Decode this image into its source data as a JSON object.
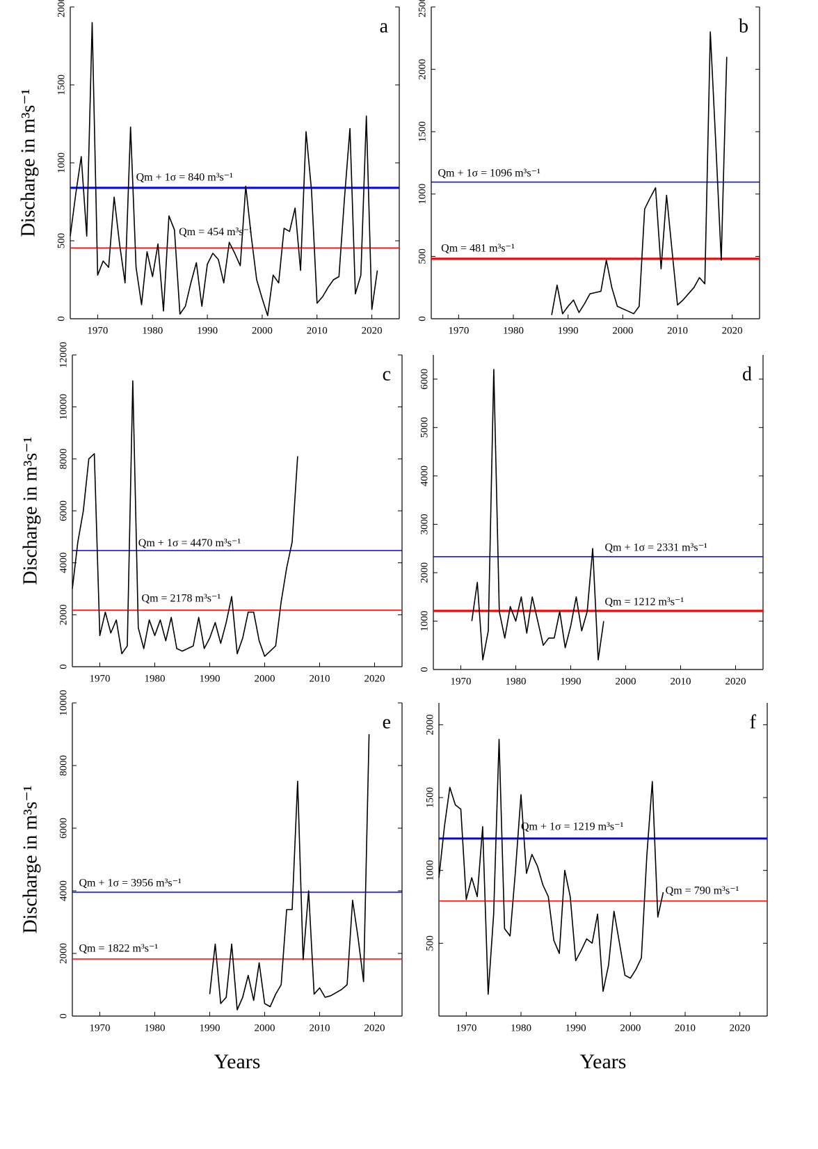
{
  "chart_data": [
    {
      "type": "line",
      "panel_label": "a",
      "ylabel": "Discharge in m³s⁻¹",
      "xlim": [
        1965,
        2025
      ],
      "xticks": [
        1970,
        1980,
        1990,
        2000,
        2010,
        2020
      ],
      "ylim": [
        0,
        2000
      ],
      "yticks": [
        0,
        500,
        1000,
        1500,
        2000
      ],
      "x": [
        1965,
        1966,
        1967,
        1968,
        1969,
        1970,
        1971,
        1972,
        1973,
        1974,
        1975,
        1976,
        1977,
        1978,
        1979,
        1980,
        1981,
        1982,
        1983,
        1984,
        1985,
        1986,
        1987,
        1988,
        1989,
        1990,
        1991,
        1992,
        1993,
        1994,
        1995,
        1996,
        1997,
        1998,
        1999,
        2000,
        2001,
        2002,
        2003,
        2004,
        2005,
        2006,
        2007,
        2008,
        2009,
        2010,
        2011,
        2012,
        2013,
        2014,
        2015,
        2016,
        2017,
        2018,
        2019,
        2020,
        2021
      ],
      "series": [
        {
          "color": "#000000",
          "values": [
            530,
            800,
            1040,
            530,
            1900,
            280,
            370,
            330,
            780,
            480,
            230,
            1230,
            330,
            90,
            430,
            270,
            480,
            50,
            660,
            570,
            30,
            80,
            230,
            360,
            80,
            350,
            420,
            380,
            230,
            490,
            420,
            340,
            850,
            530,
            250,
            130,
            20,
            280,
            230,
            580,
            560,
            710,
            310,
            1200,
            820,
            100,
            140,
            200,
            250,
            270,
            770,
            1220,
            160,
            280,
            1300,
            60,
            310
          ]
        }
      ],
      "reference_lines": [
        {
          "value": 840,
          "label": "Qm + 1σ = 840 m³s⁻¹",
          "color": "#0000ff",
          "linewidth": 3
        },
        {
          "value": 454,
          "label": "Qm = 454 m³s⁻¹",
          "color": "#ff0000",
          "linewidth": 1.5
        }
      ]
    },
    {
      "type": "line",
      "panel_label": "b",
      "xlim": [
        1965,
        2025
      ],
      "xticks": [
        1970,
        1980,
        1990,
        2000,
        2010,
        2020
      ],
      "ylim": [
        0,
        2500
      ],
      "yticks": [
        0,
        500,
        1000,
        1500,
        2000,
        2500
      ],
      "x": [
        1987,
        1988,
        1989,
        1990,
        1991,
        1992,
        1993,
        1994,
        1995,
        1996,
        1997,
        1998,
        1999,
        2000,
        2001,
        2002,
        2003,
        2004,
        2005,
        2006,
        2007,
        2008,
        2009,
        2010,
        2011,
        2012,
        2013,
        2014,
        2015,
        2016,
        2017,
        2018,
        2019
      ],
      "series": [
        {
          "color": "#000000",
          "values": [
            30,
            270,
            40,
            100,
            150,
            50,
            120,
            200,
            210,
            220,
            470,
            250,
            100,
            80,
            60,
            40,
            100,
            880,
            970,
            1050,
            400,
            990,
            550,
            110,
            150,
            200,
            250,
            330,
            280,
            2300,
            1400,
            470,
            2100
          ]
        }
      ],
      "reference_lines": [
        {
          "value": 1096,
          "label": "Qm + 1σ = 1096 m³s⁻¹",
          "color": "#0000ff",
          "linewidth": 1.5
        },
        {
          "value": 481,
          "label": "Qm = 481 m³s⁻¹",
          "color": "#ff0000",
          "linewidth": 3
        }
      ]
    },
    {
      "type": "line",
      "panel_label": "c",
      "ylabel": "Discharge in m³s⁻¹",
      "xlim": [
        1965,
        2025
      ],
      "xticks": [
        1970,
        1980,
        1990,
        2000,
        2010,
        2020
      ],
      "ylim": [
        0,
        12000
      ],
      "yticks": [
        0,
        2000,
        4000,
        6000,
        8000,
        10000,
        12000
      ],
      "x": [
        1965,
        1966,
        1967,
        1968,
        1969,
        1970,
        1971,
        1972,
        1973,
        1974,
        1975,
        1976,
        1977,
        1978,
        1979,
        1980,
        1981,
        1982,
        1983,
        1984,
        1985,
        1986,
        1987,
        1988,
        1989,
        1990,
        1991,
        1992,
        1993,
        1994,
        1995,
        1996,
        1997,
        1998,
        1999,
        2000,
        2001,
        2002,
        2003,
        2004,
        2005,
        2006
      ],
      "series": [
        {
          "color": "#000000",
          "values": [
            3000,
            4800,
            6000,
            8000,
            8200,
            1200,
            2100,
            1300,
            1800,
            500,
            800,
            11000,
            1500,
            700,
            1800,
            1200,
            1800,
            1000,
            1900,
            700,
            600,
            700,
            800,
            1900,
            700,
            1100,
            1700,
            900,
            1700,
            2700,
            500,
            1100,
            2100,
            2100,
            1000,
            400,
            600,
            800,
            2500,
            3800,
            4800,
            8100
          ]
        }
      ],
      "reference_lines": [
        {
          "value": 4470,
          "label": "Qm + 1σ = 4470 m³s⁻¹",
          "color": "#0000ff",
          "linewidth": 1.5
        },
        {
          "value": 2178,
          "label": "Qm = 2178 m³s⁻¹",
          "color": "#ff0000",
          "linewidth": 1.5
        }
      ]
    },
    {
      "type": "line",
      "panel_label": "d",
      "xlim": [
        1965,
        2025
      ],
      "xticks": [
        1970,
        1980,
        1990,
        2000,
        2010,
        2020
      ],
      "ylim": [
        0,
        6500
      ],
      "yticks": [
        0,
        1000,
        2000,
        3000,
        4000,
        5000,
        6000
      ],
      "x": [
        1972,
        1973,
        1974,
        1975,
        1976,
        1977,
        1978,
        1979,
        1980,
        1981,
        1982,
        1983,
        1984,
        1985,
        1986,
        1987,
        1988,
        1989,
        1990,
        1991,
        1992,
        1993,
        1994,
        1995,
        1996
      ],
      "series": [
        {
          "color": "#000000",
          "values": [
            1000,
            1800,
            200,
            800,
            6200,
            1200,
            650,
            1300,
            1000,
            1500,
            750,
            1500,
            1000,
            500,
            650,
            650,
            1200,
            450,
            900,
            1500,
            800,
            1200,
            2500,
            200,
            1000
          ]
        }
      ],
      "reference_lines": [
        {
          "value": 2331,
          "label": "Qm + 1σ = 2331 m³s⁻¹",
          "color": "#0000ff",
          "linewidth": 1.5
        },
        {
          "value": 1212,
          "label": "Qm = 1212 m³s⁻¹",
          "color": "#ff0000",
          "linewidth": 3
        }
      ]
    },
    {
      "type": "line",
      "panel_label": "e",
      "ylabel": "Discharge in m³s⁻¹",
      "xlabel": "Years",
      "xlim": [
        1965,
        2025
      ],
      "xticks": [
        1970,
        1980,
        1990,
        2000,
        2010,
        2020
      ],
      "ylim": [
        0,
        10000
      ],
      "yticks": [
        0,
        2000,
        4000,
        6000,
        8000,
        10000
      ],
      "x": [
        1990,
        1991,
        1992,
        1993,
        1994,
        1995,
        1996,
        1997,
        1998,
        1999,
        2000,
        2001,
        2002,
        2003,
        2004,
        2005,
        2006,
        2007,
        2008,
        2009,
        2010,
        2011,
        2012,
        2013,
        2014,
        2015,
        2016,
        2017,
        2018,
        2019
      ],
      "series": [
        {
          "color": "#000000",
          "values": [
            700,
            2300,
            400,
            600,
            2300,
            200,
            600,
            1300,
            500,
            1700,
            400,
            300,
            700,
            1000,
            3400,
            3400,
            7500,
            1800,
            4000,
            700,
            900,
            600,
            650,
            750,
            850,
            1000,
            3700,
            2500,
            1100,
            9000
          ]
        }
      ],
      "reference_lines": [
        {
          "value": 3956,
          "label": "Qm + 1σ = 3956 m³s⁻¹",
          "color": "#0000ff",
          "linewidth": 1.5
        },
        {
          "value": 1822,
          "label": "Qm = 1822 m³s⁻¹",
          "color": "#ff0000",
          "linewidth": 1.5
        }
      ]
    },
    {
      "type": "line",
      "panel_label": "f",
      "xlabel": "Years",
      "xlim": [
        1965,
        2025
      ],
      "xticks": [
        1970,
        1980,
        1990,
        2000,
        2010,
        2020
      ],
      "ylim": [
        0,
        2150
      ],
      "yticks": [
        500,
        1000,
        1500,
        2000
      ],
      "x": [
        1965,
        1966,
        1967,
        1968,
        1969,
        1970,
        1971,
        1972,
        1973,
        1974,
        1975,
        1976,
        1977,
        1978,
        1979,
        1980,
        1981,
        1982,
        1983,
        1984,
        1985,
        1986,
        1987,
        1988,
        1989,
        1990,
        1991,
        1992,
        1993,
        1994,
        1995,
        1996,
        1997,
        1998,
        1999,
        2000,
        2001,
        2002,
        2003,
        2004,
        2005,
        2006
      ],
      "series": [
        {
          "color": "#000000",
          "values": [
            950,
            1300,
            1570,
            1450,
            1420,
            800,
            950,
            820,
            1300,
            150,
            700,
            1900,
            600,
            550,
            1000,
            1520,
            980,
            1110,
            1030,
            900,
            820,
            520,
            430,
            1000,
            820,
            380,
            450,
            530,
            500,
            700,
            170,
            350,
            720,
            500,
            280,
            260,
            320,
            400,
            1100,
            1610,
            680,
            850
          ]
        }
      ],
      "reference_lines": [
        {
          "value": 1219,
          "label": "Qm + 1σ = 1219 m³s⁻¹",
          "color": "#0000ff",
          "linewidth": 3
        },
        {
          "value": 790,
          "label": "Qm = 790 m³s⁻¹",
          "color": "#ff0000",
          "linewidth": 1.5
        }
      ]
    }
  ]
}
